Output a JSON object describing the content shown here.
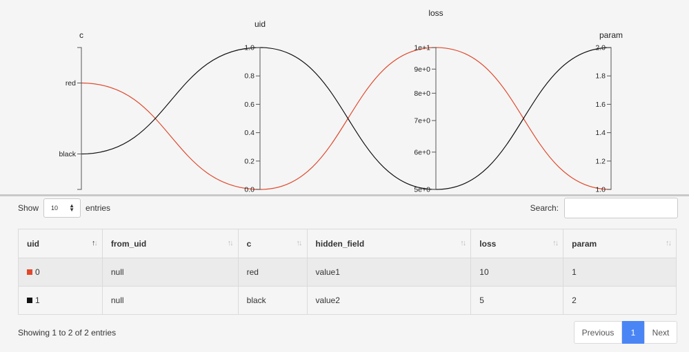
{
  "chart_data": {
    "type": "parallel_coordinates",
    "axes": [
      {
        "name": "c",
        "kind": "categorical",
        "categories": [
          "black",
          "red"
        ],
        "tick_labels": [
          "red",
          "black"
        ]
      },
      {
        "name": "uid",
        "kind": "linear",
        "range": [
          0,
          1
        ],
        "tick_labels": [
          "1.0",
          "0.8",
          "0.6",
          "0.4",
          "0.2",
          "0.0"
        ]
      },
      {
        "name": "loss",
        "kind": "log",
        "range": [
          5,
          10
        ],
        "tick_labels": [
          "1e+1",
          "9e+0",
          "8e+0",
          "7e+0",
          "6e+0",
          "5e+0"
        ]
      },
      {
        "name": "param",
        "kind": "linear",
        "range": [
          1,
          2
        ],
        "tick_labels": [
          "2.0",
          "1.8",
          "1.6",
          "1.4",
          "1.2",
          "1.0"
        ]
      }
    ],
    "lines": [
      {
        "uid": 0,
        "color": "#e0482c",
        "values": {
          "c": "red",
          "uid": 0,
          "loss": 10,
          "param": 1
        }
      },
      {
        "uid": 1,
        "color": "#111111",
        "values": {
          "c": "black",
          "uid": 1,
          "loss": 5,
          "param": 2
        }
      }
    ]
  },
  "controls": {
    "show_label": "Show",
    "page_length": "10",
    "entries_label": "entries",
    "search_label": "Search:",
    "search_value": ""
  },
  "table": {
    "columns": [
      "uid",
      "from_uid",
      "c",
      "hidden_field",
      "loss",
      "param"
    ],
    "rows": [
      {
        "uid": "0",
        "from_uid": "null",
        "c": "red",
        "hidden_field": "value1",
        "loss": "10",
        "param": "1",
        "color": "#e0482c"
      },
      {
        "uid": "1",
        "from_uid": "null",
        "c": "black",
        "hidden_field": "value2",
        "loss": "5",
        "param": "2",
        "color": "#111111"
      }
    ]
  },
  "footer": {
    "info": "Showing 1 to 2 of 2 entries",
    "previous_label": "Previous",
    "current_page": "1",
    "next_label": "Next"
  }
}
